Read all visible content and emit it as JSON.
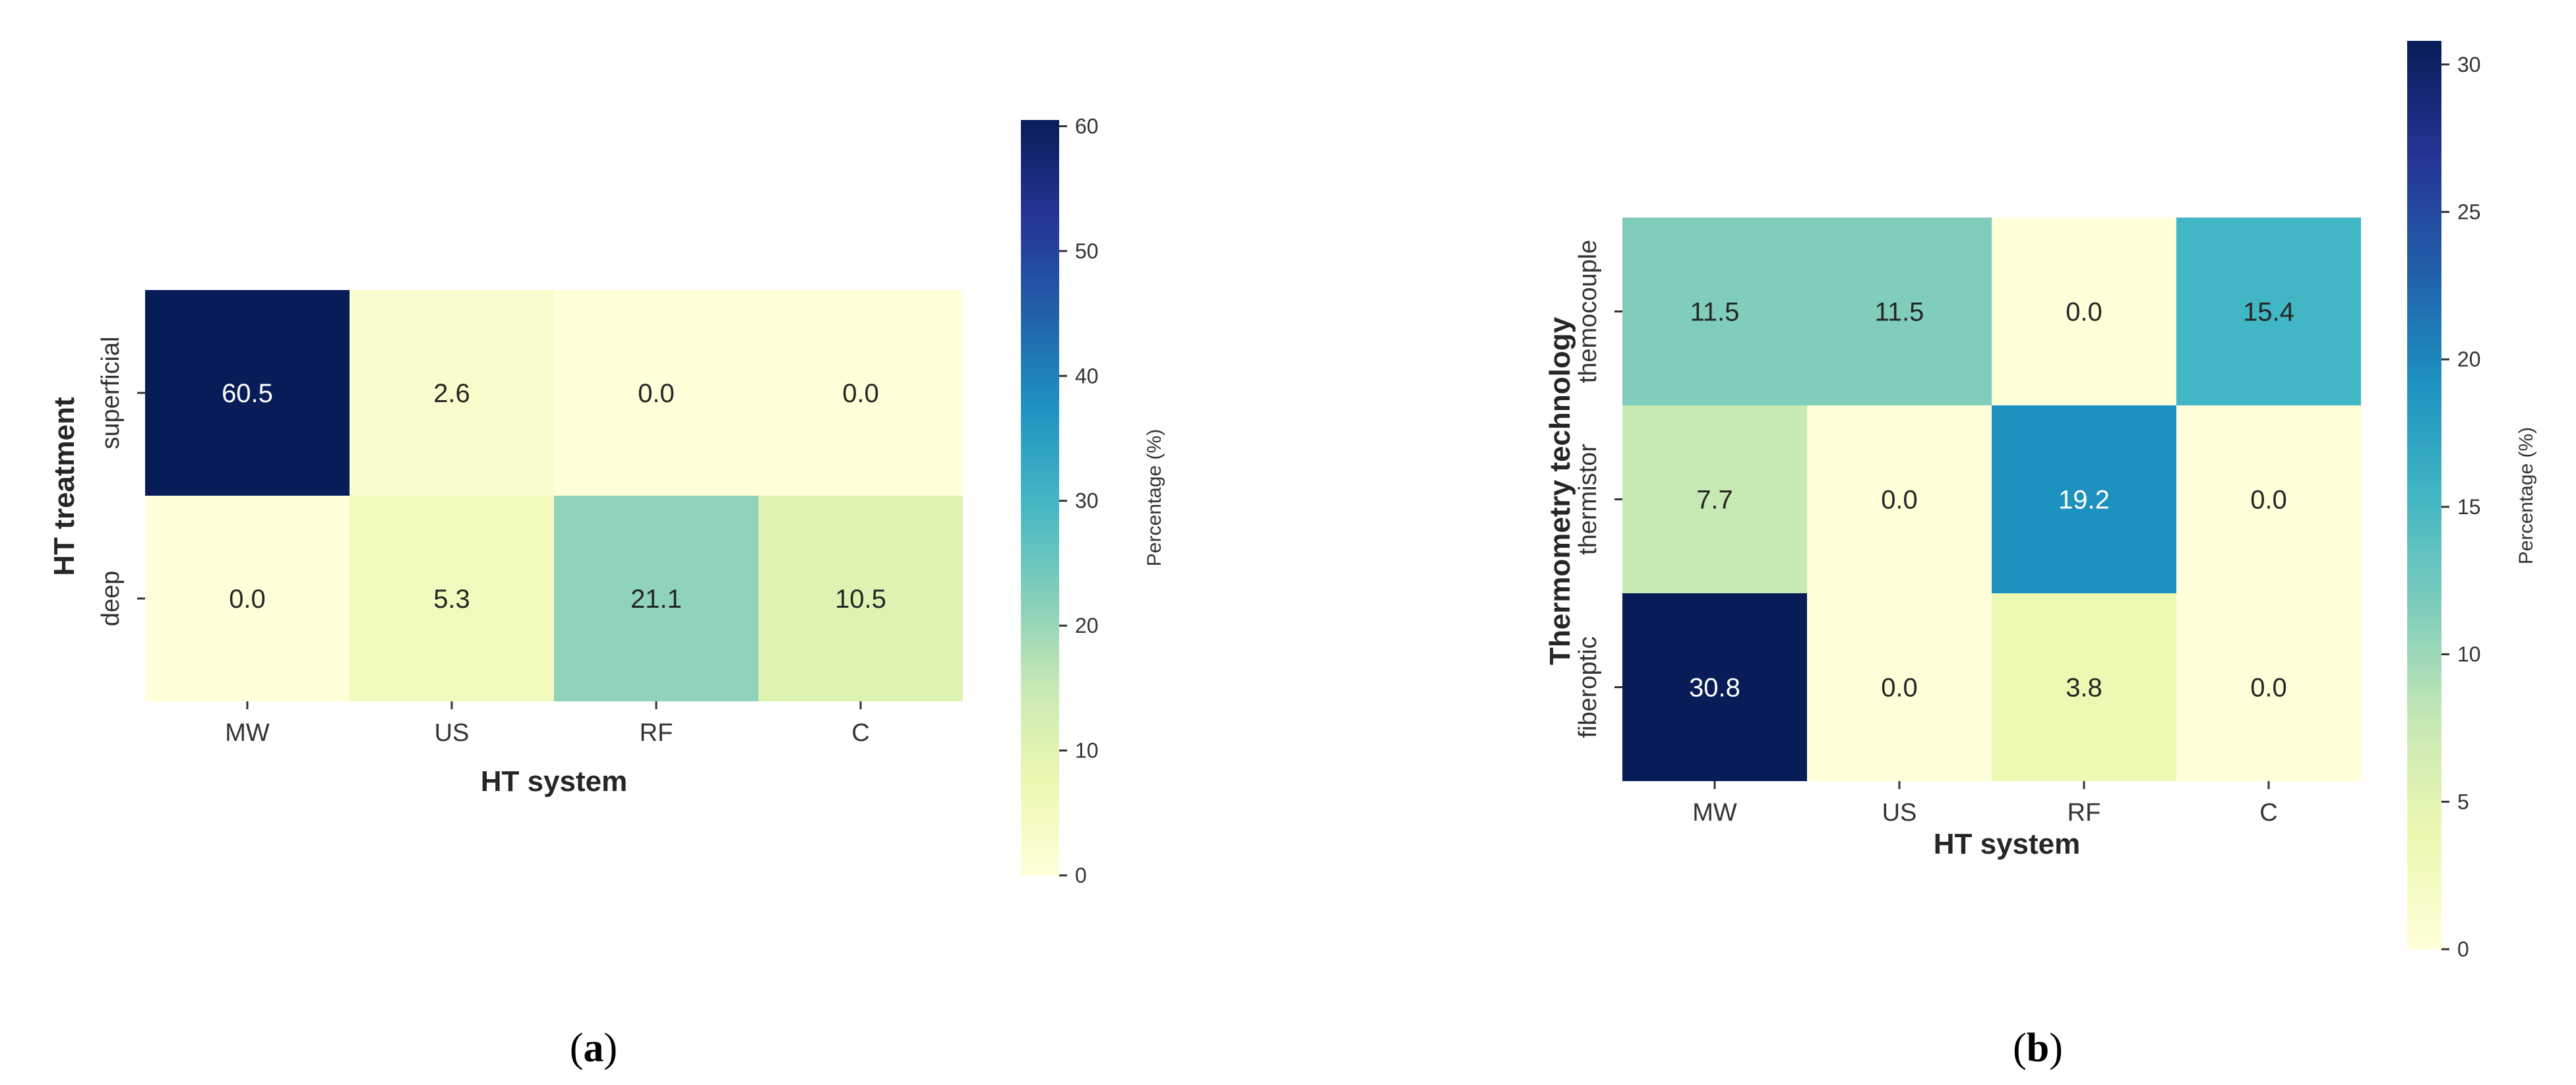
{
  "chart_data": [
    {
      "type": "heatmap",
      "panel_label_open": "(",
      "panel_label_letter": "a",
      "panel_label_close": ")",
      "x_categories": [
        "MW",
        "US",
        "RF",
        "C"
      ],
      "y_categories": [
        "superficial",
        "deep"
      ],
      "values": [
        [
          60.5,
          2.6,
          0.0,
          0.0
        ],
        [
          0.0,
          5.3,
          21.1,
          10.5
        ]
      ],
      "value_labels": [
        [
          "60.5",
          "2.6",
          "0.0",
          "0.0"
        ],
        [
          "0.0",
          "5.3",
          "21.1",
          "10.5"
        ]
      ],
      "xlabel": "HT system",
      "ylabel": "HT treatment",
      "colorbar_label": "Percentage (%)",
      "colorbar_range": [
        0,
        60.5
      ],
      "colorbar_ticks": [
        0,
        10,
        20,
        30,
        40,
        50,
        60
      ],
      "colormap": "YlGnBu"
    },
    {
      "type": "heatmap",
      "panel_label_open": "(",
      "panel_label_letter": "b",
      "panel_label_close": ")",
      "x_categories": [
        "MW",
        "US",
        "RF",
        "C"
      ],
      "y_categories": [
        "themocouple",
        "thermistor",
        "fiberoptic"
      ],
      "values": [
        [
          11.5,
          11.5,
          0.0,
          15.4
        ],
        [
          7.7,
          0.0,
          19.2,
          0.0
        ],
        [
          30.8,
          0.0,
          3.8,
          0.0
        ]
      ],
      "value_labels": [
        [
          "11.5",
          "11.5",
          "0.0",
          "15.4"
        ],
        [
          "7.7",
          "0.0",
          "19.2",
          "0.0"
        ],
        [
          "30.8",
          "0.0",
          "3.8",
          "0.0"
        ]
      ],
      "xlabel": "HT system",
      "ylabel": "Thermometry technology",
      "colorbar_label": "Percentage (%)",
      "colorbar_range": [
        0,
        30.8
      ],
      "colorbar_ticks": [
        0,
        5,
        10,
        15,
        20,
        25,
        30
      ],
      "colormap": "YlGnBu"
    }
  ]
}
